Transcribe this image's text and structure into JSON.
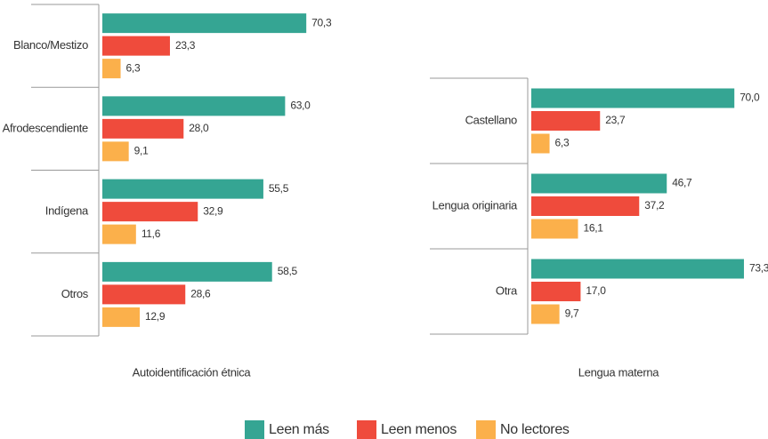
{
  "chart_data": [
    {
      "type": "hbar",
      "xlabel": "Autoidentificación étnica",
      "categories": [
        "Blanco/Mestizo",
        "Afrodescendiente",
        "Indígena",
        "Otros"
      ],
      "series": [
        {
          "name": "Leen más",
          "color": "#35a593",
          "values": [
            70.3,
            63.0,
            55.5,
            58.5
          ],
          "value_labels": [
            "70,3",
            "63,0",
            "55,5",
            "58,5"
          ]
        },
        {
          "name": "Leen menos",
          "color": "#ef4b3c",
          "values": [
            23.3,
            28.0,
            32.9,
            28.6
          ],
          "value_labels": [
            "23,3",
            "28,0",
            "32,9",
            "28,6"
          ]
        },
        {
          "name": "No lectores",
          "color": "#fbb04b",
          "values": [
            6.3,
            9.1,
            11.6,
            12.9
          ],
          "value_labels": [
            "6,3",
            "9,1",
            "11,6",
            "12,9"
          ]
        }
      ]
    },
    {
      "type": "hbar",
      "xlabel": "Lengua materna",
      "categories": [
        "Castellano",
        "Lengua originaria",
        "Otra"
      ],
      "series": [
        {
          "values": [
            70.0,
            46.7,
            73.3
          ],
          "value_labels": [
            "70,0",
            "46,7",
            "73,3"
          ]
        },
        {
          "values": [
            23.7,
            37.2,
            17.0
          ],
          "value_labels": [
            "23,7",
            "37,2",
            "17,0"
          ]
        },
        {
          "values": [
            6.3,
            16.1,
            9.7
          ],
          "value_labels": [
            "6,3",
            "16,1",
            "9,7"
          ]
        }
      ]
    }
  ]
}
